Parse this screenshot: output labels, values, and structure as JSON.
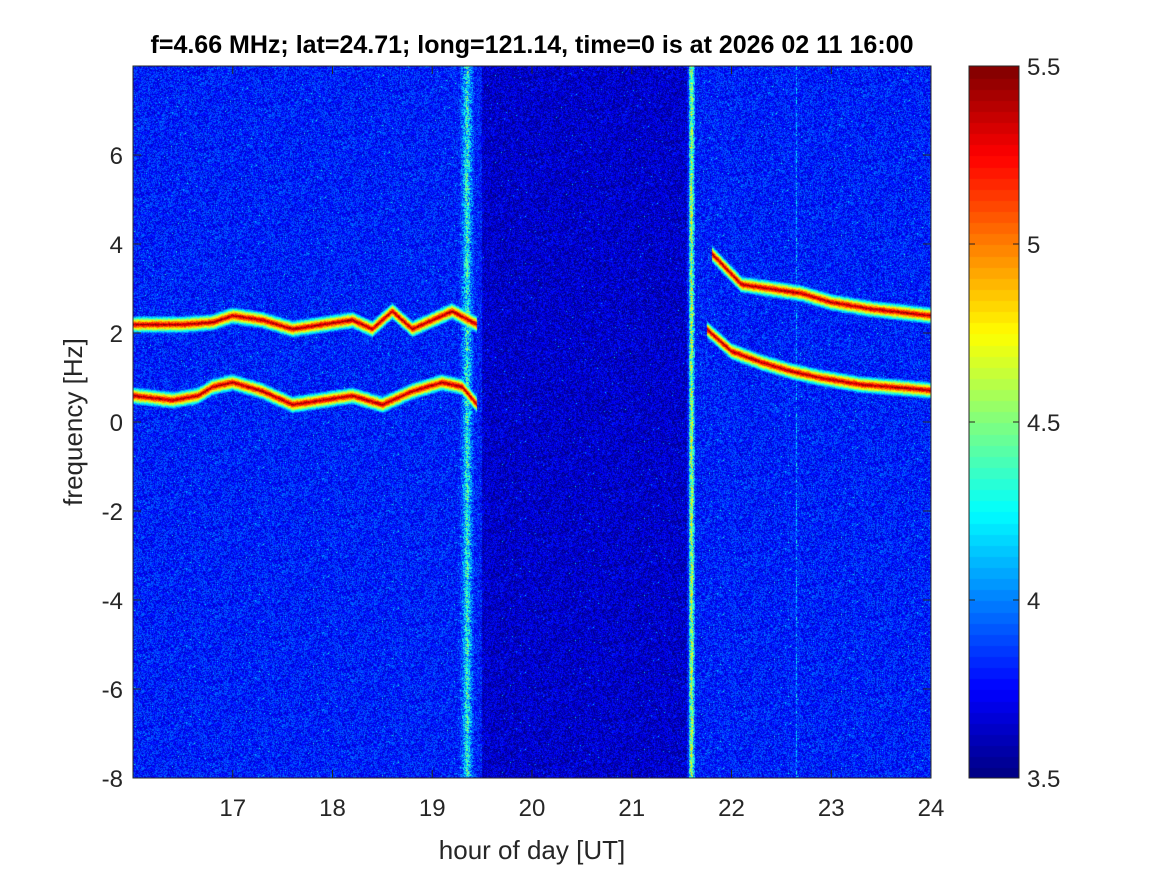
{
  "chart_data": {
    "type": "heatmap",
    "title": "f=4.66 MHz;  lat=24.71; long=121.14, time=0 is at 2026 02 11 16:00",
    "xlabel": "hour of day [UT]",
    "ylabel": "frequency [Hz]",
    "xlim": [
      16,
      24
    ],
    "ylim": [
      -8,
      8
    ],
    "xticks": [
      17,
      18,
      19,
      20,
      21,
      22,
      23,
      24
    ],
    "yticks": [
      -8,
      -6,
      -4,
      -2,
      0,
      2,
      4,
      6
    ],
    "colormap": "jet",
    "clim": [
      3.5,
      5.5
    ],
    "colorbar_ticks": [
      "3.5",
      "4",
      "4.5",
      "5",
      "5.5"
    ],
    "background_level": 3.8,
    "traces": [
      {
        "x": [
          16.0,
          16.5,
          16.8,
          17.0,
          17.3,
          17.6,
          17.9,
          18.2,
          18.4,
          18.6,
          18.8,
          19.0,
          19.2,
          19.45
        ],
        "y": [
          2.2,
          2.2,
          2.25,
          2.4,
          2.3,
          2.1,
          2.2,
          2.3,
          2.1,
          2.5,
          2.1,
          2.3,
          2.5,
          2.2
        ]
      },
      {
        "x": [
          16.0,
          16.4,
          16.65,
          16.8,
          17.0,
          17.3,
          17.6,
          17.9,
          18.2,
          18.5,
          18.8,
          19.1,
          19.3,
          19.45
        ],
        "y": [
          0.6,
          0.5,
          0.6,
          0.8,
          0.9,
          0.7,
          0.4,
          0.5,
          0.6,
          0.4,
          0.7,
          0.9,
          0.8,
          0.4
        ]
      },
      {
        "x": [
          21.8,
          22.1,
          22.4,
          22.7,
          23.0,
          23.4,
          23.8,
          24.0
        ],
        "y": [
          3.8,
          3.1,
          3.0,
          2.9,
          2.7,
          2.55,
          2.45,
          2.4
        ]
      },
      {
        "x": [
          21.75,
          22.0,
          22.3,
          22.6,
          22.9,
          23.3,
          23.7,
          24.0
        ],
        "y": [
          2.1,
          1.6,
          1.35,
          1.15,
          1.0,
          0.85,
          0.78,
          0.72
        ]
      }
    ],
    "broadband_bands": [
      {
        "x": 19.35,
        "width_hours": 0.07,
        "level": 4.3
      },
      {
        "x": 21.6,
        "width_hours": 0.03,
        "level": 4.6
      },
      {
        "x": 22.65,
        "width_hours": 0.01,
        "level": 4.1
      }
    ],
    "data_gap": {
      "from": 19.5,
      "to": 21.55,
      "level": 3.65
    }
  }
}
